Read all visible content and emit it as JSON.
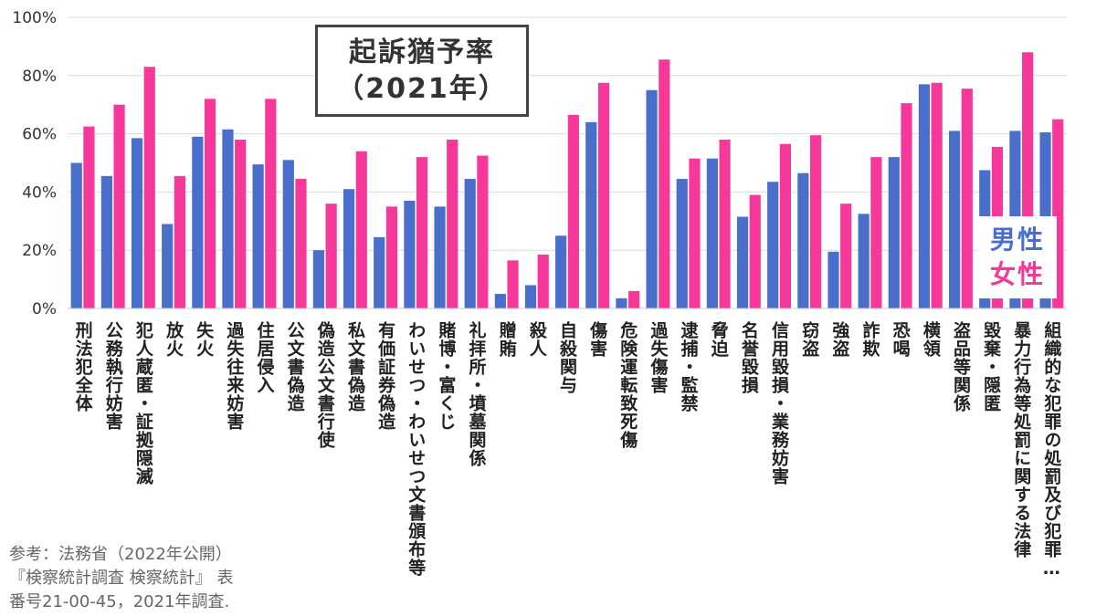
{
  "colors": {
    "male": "#4a6fcb",
    "female": "#f5389a",
    "grid": "#dcdcdc"
  },
  "chart_data": {
    "type": "bar",
    "title_lines": [
      "起訴猶予率",
      "（2021年）"
    ],
    "ylim": [
      0,
      100
    ],
    "yticks": [
      "0%",
      "20%",
      "40%",
      "60%",
      "80%",
      "100%"
    ],
    "grid": true,
    "legend_position": "bottom-right",
    "categories": [
      "刑法犯全体",
      "公務執行妨害",
      "犯人蔵匿・証拠隠滅",
      "放火",
      "失火",
      "過失往来妨害",
      "住居侵入",
      "公文書偽造",
      "偽造公文書行使",
      "私文書偽造",
      "有価証券偽造",
      "わいせつ・わいせつ文書頒布等",
      "賭博・富くじ",
      "礼拝所・墳墓関係",
      "贈賄",
      "殺人",
      "自殺関与",
      "傷害",
      "危険運転致死傷",
      "過失傷害",
      "逮捕・監禁",
      "脅迫",
      "名誉毀損",
      "信用毀損・業務妨害",
      "窃盗",
      "強盗",
      "詐欺",
      "恐喝",
      "横領",
      "盗品等関係",
      "毀棄・隠匿",
      "暴力行為等処罰に関する法律",
      "組織的な犯罪の処罰及び犯罪…"
    ],
    "series": [
      {
        "name": "男性",
        "values": [
          50,
          45.5,
          58.5,
          29,
          59,
          61.5,
          49.5,
          51,
          20,
          41,
          24.5,
          37,
          35,
          44.5,
          5,
          8,
          25,
          64,
          3.5,
          75,
          44.5,
          51.5,
          31.5,
          43.5,
          46.5,
          19.5,
          32.5,
          52,
          77,
          61,
          47.5,
          61,
          60.5
        ]
      },
      {
        "name": "女性",
        "values": [
          62.5,
          70,
          83,
          45.5,
          72,
          58,
          72,
          44.5,
          36,
          54,
          35,
          52,
          58,
          52.5,
          16.5,
          18.5,
          66.5,
          77.5,
          6,
          85.5,
          51.5,
          58,
          39,
          56.5,
          59.5,
          36,
          52,
          70.5,
          77.5,
          75.5,
          55.5,
          88,
          65
        ]
      }
    ]
  },
  "legend": {
    "male_label": "男性",
    "female_label": "女性"
  },
  "source_lines": [
    "参考：法務省（2022年公開）",
    "『検察統計調査 検察統計』 表",
    "番号21-00-45，2021年調査."
  ]
}
